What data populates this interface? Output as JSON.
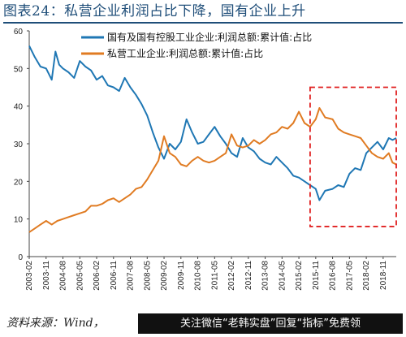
{
  "title": "图表24：私营企业利润占比下降，国有企业上升",
  "source": "资料来源：Wind，",
  "watermark": "关注微信“老韩实盘”回复“指标”免费领",
  "colors": {
    "state": "#1f77b4",
    "private": "#e07b22",
    "highlight": "#e02020",
    "axis": "#444444"
  },
  "chart_data": {
    "type": "line",
    "ylim": [
      0,
      60
    ],
    "yticks": [
      0,
      10,
      20,
      30,
      40,
      50,
      60
    ],
    "x_tick_labels": [
      "2003-02",
      "2003-11",
      "2004-08",
      "2005-05",
      "2006-02",
      "2006-11",
      "2007-08",
      "2008-05",
      "2009-02",
      "2009-11",
      "2010-08",
      "2011-05",
      "2012-02",
      "2012-11",
      "2013-08",
      "2014-05",
      "2015-02",
      "2015-11",
      "2016-08",
      "2017-05",
      "2018-02",
      "2018-11"
    ],
    "x_range": [
      "2003-02",
      "2019-06"
    ],
    "highlight_region": {
      "x_start": "2015-08",
      "x_end": "2019-06",
      "y_start": 8,
      "y_end": 45
    },
    "legend_position": "top",
    "series": [
      {
        "name": "国有及国有控股工业企业:利润总额:累计值:占比",
        "color": "#1f77b4",
        "points": [
          [
            "2003-02",
            56.0
          ],
          [
            "2003-05",
            53.0
          ],
          [
            "2003-08",
            50.5
          ],
          [
            "2003-11",
            50.0
          ],
          [
            "2004-02",
            47.0
          ],
          [
            "2004-04",
            54.5
          ],
          [
            "2004-06",
            51.0
          ],
          [
            "2004-08",
            50.0
          ],
          [
            "2004-11",
            49.0
          ],
          [
            "2005-02",
            47.5
          ],
          [
            "2005-05",
            52.0
          ],
          [
            "2005-08",
            50.5
          ],
          [
            "2005-11",
            49.5
          ],
          [
            "2006-02",
            47.0
          ],
          [
            "2006-05",
            48.0
          ],
          [
            "2006-08",
            45.5
          ],
          [
            "2006-11",
            45.0
          ],
          [
            "2007-02",
            44.0
          ],
          [
            "2007-05",
            47.5
          ],
          [
            "2007-08",
            45.0
          ],
          [
            "2007-11",
            43.0
          ],
          [
            "2008-02",
            40.5
          ],
          [
            "2008-05",
            37.5
          ],
          [
            "2008-08",
            33.0
          ],
          [
            "2008-11",
            29.0
          ],
          [
            "2009-02",
            26.0
          ],
          [
            "2009-05",
            30.0
          ],
          [
            "2009-08",
            28.5
          ],
          [
            "2009-11",
            30.5
          ],
          [
            "2010-02",
            36.5
          ],
          [
            "2010-05",
            33.0
          ],
          [
            "2010-08",
            30.0
          ],
          [
            "2010-11",
            30.5
          ],
          [
            "2011-02",
            32.5
          ],
          [
            "2011-05",
            34.5
          ],
          [
            "2011-08",
            32.0
          ],
          [
            "2011-11",
            30.0
          ],
          [
            "2012-02",
            27.5
          ],
          [
            "2012-05",
            26.5
          ],
          [
            "2012-08",
            31.5
          ],
          [
            "2012-11",
            29.0
          ],
          [
            "2013-02",
            28.0
          ],
          [
            "2013-05",
            26.0
          ],
          [
            "2013-08",
            25.0
          ],
          [
            "2013-11",
            24.5
          ],
          [
            "2014-02",
            26.5
          ],
          [
            "2014-05",
            25.0
          ],
          [
            "2014-08",
            23.5
          ],
          [
            "2014-11",
            21.5
          ],
          [
            "2015-02",
            21.0
          ],
          [
            "2015-05",
            20.0
          ],
          [
            "2015-08",
            19.0
          ],
          [
            "2015-11",
            18.0
          ],
          [
            "2016-01",
            15.0
          ],
          [
            "2016-04",
            17.5
          ],
          [
            "2016-08",
            18.0
          ],
          [
            "2016-11",
            19.0
          ],
          [
            "2017-02",
            18.5
          ],
          [
            "2017-05",
            22.0
          ],
          [
            "2017-08",
            23.5
          ],
          [
            "2017-11",
            23.0
          ],
          [
            "2018-02",
            27.5
          ],
          [
            "2018-05",
            29.0
          ],
          [
            "2018-08",
            30.5
          ],
          [
            "2018-11",
            28.5
          ],
          [
            "2019-02",
            31.5
          ],
          [
            "2019-04",
            31.0
          ],
          [
            "2019-06",
            31.5
          ]
        ]
      },
      {
        "name": "私营工业企业:利润总额:累计值:占比",
        "color": "#e07b22",
        "points": [
          [
            "2003-02",
            6.5
          ],
          [
            "2003-05",
            7.5
          ],
          [
            "2003-08",
            8.5
          ],
          [
            "2003-11",
            9.5
          ],
          [
            "2004-02",
            8.5
          ],
          [
            "2004-05",
            9.5
          ],
          [
            "2004-08",
            10.0
          ],
          [
            "2004-11",
            10.5
          ],
          [
            "2005-02",
            11.0
          ],
          [
            "2005-05",
            11.5
          ],
          [
            "2005-08",
            12.0
          ],
          [
            "2005-11",
            13.5
          ],
          [
            "2006-02",
            13.5
          ],
          [
            "2006-05",
            14.0
          ],
          [
            "2006-08",
            15.0
          ],
          [
            "2006-11",
            15.5
          ],
          [
            "2007-02",
            14.5
          ],
          [
            "2007-05",
            15.5
          ],
          [
            "2007-08",
            16.5
          ],
          [
            "2007-11",
            18.0
          ],
          [
            "2008-02",
            18.5
          ],
          [
            "2008-05",
            20.5
          ],
          [
            "2008-08",
            23.0
          ],
          [
            "2008-11",
            25.5
          ],
          [
            "2009-02",
            32.0
          ],
          [
            "2009-05",
            27.5
          ],
          [
            "2009-08",
            26.5
          ],
          [
            "2009-11",
            24.5
          ],
          [
            "2010-02",
            24.0
          ],
          [
            "2010-05",
            25.5
          ],
          [
            "2010-08",
            26.5
          ],
          [
            "2010-11",
            25.5
          ],
          [
            "2011-02",
            25.0
          ],
          [
            "2011-05",
            25.5
          ],
          [
            "2011-08",
            26.5
          ],
          [
            "2011-11",
            27.5
          ],
          [
            "2012-02",
            32.5
          ],
          [
            "2012-05",
            29.5
          ],
          [
            "2012-08",
            29.0
          ],
          [
            "2012-11",
            29.5
          ],
          [
            "2013-02",
            31.0
          ],
          [
            "2013-05",
            30.0
          ],
          [
            "2013-08",
            31.0
          ],
          [
            "2013-11",
            32.5
          ],
          [
            "2014-02",
            33.0
          ],
          [
            "2014-05",
            34.5
          ],
          [
            "2014-08",
            34.0
          ],
          [
            "2014-11",
            35.5
          ],
          [
            "2015-02",
            38.5
          ],
          [
            "2015-05",
            35.5
          ],
          [
            "2015-08",
            34.5
          ],
          [
            "2015-11",
            36.5
          ],
          [
            "2016-01",
            39.5
          ],
          [
            "2016-04",
            37.0
          ],
          [
            "2016-08",
            36.5
          ],
          [
            "2016-11",
            34.0
          ],
          [
            "2017-02",
            33.0
          ],
          [
            "2017-05",
            32.5
          ],
          [
            "2017-08",
            32.0
          ],
          [
            "2017-11",
            31.5
          ],
          [
            "2018-02",
            29.5
          ],
          [
            "2018-05",
            27.5
          ],
          [
            "2018-08",
            26.5
          ],
          [
            "2018-11",
            26.0
          ],
          [
            "2019-02",
            27.5
          ],
          [
            "2019-04",
            25.0
          ],
          [
            "2019-06",
            24.5
          ]
        ]
      }
    ]
  }
}
